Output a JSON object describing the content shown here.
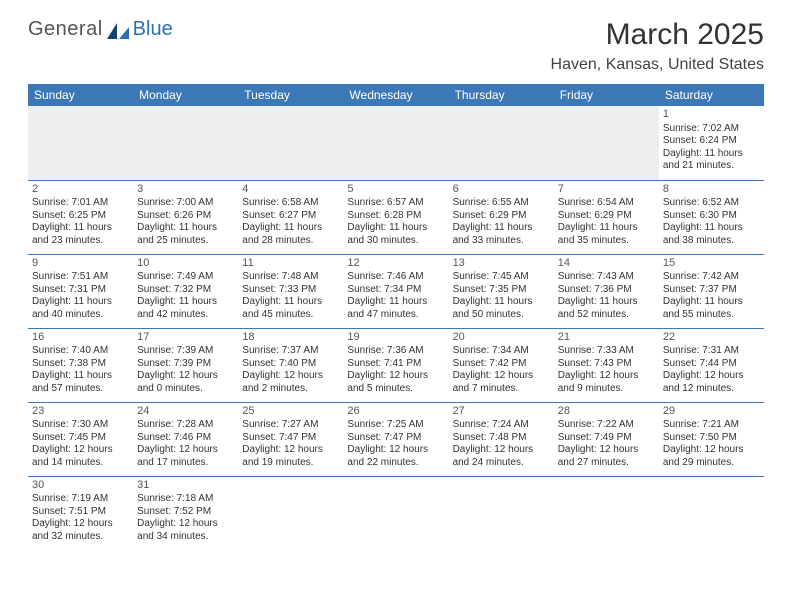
{
  "brand": {
    "part1": "General",
    "part2": "Blue"
  },
  "title": {
    "month": "March 2025",
    "location": "Haven, Kansas, United States"
  },
  "colors": {
    "header_bg": "#3b78b5",
    "header_text": "#ffffff",
    "cell_border": "#3b78b5",
    "blank_bg": "#eeeeee",
    "logo_accent": "#2f6fb2"
  },
  "day_headers": [
    "Sunday",
    "Monday",
    "Tuesday",
    "Wednesday",
    "Thursday",
    "Friday",
    "Saturday"
  ],
  "weeks": [
    [
      null,
      null,
      null,
      null,
      null,
      null,
      {
        "d": "1",
        "sr": "Sunrise: 7:02 AM",
        "ss": "Sunset: 6:24 PM",
        "dl": "Daylight: 11 hours and 21 minutes."
      }
    ],
    [
      {
        "d": "2",
        "sr": "Sunrise: 7:01 AM",
        "ss": "Sunset: 6:25 PM",
        "dl": "Daylight: 11 hours and 23 minutes."
      },
      {
        "d": "3",
        "sr": "Sunrise: 7:00 AM",
        "ss": "Sunset: 6:26 PM",
        "dl": "Daylight: 11 hours and 25 minutes."
      },
      {
        "d": "4",
        "sr": "Sunrise: 6:58 AM",
        "ss": "Sunset: 6:27 PM",
        "dl": "Daylight: 11 hours and 28 minutes."
      },
      {
        "d": "5",
        "sr": "Sunrise: 6:57 AM",
        "ss": "Sunset: 6:28 PM",
        "dl": "Daylight: 11 hours and 30 minutes."
      },
      {
        "d": "6",
        "sr": "Sunrise: 6:55 AM",
        "ss": "Sunset: 6:29 PM",
        "dl": "Daylight: 11 hours and 33 minutes."
      },
      {
        "d": "7",
        "sr": "Sunrise: 6:54 AM",
        "ss": "Sunset: 6:29 PM",
        "dl": "Daylight: 11 hours and 35 minutes."
      },
      {
        "d": "8",
        "sr": "Sunrise: 6:52 AM",
        "ss": "Sunset: 6:30 PM",
        "dl": "Daylight: 11 hours and 38 minutes."
      }
    ],
    [
      {
        "d": "9",
        "sr": "Sunrise: 7:51 AM",
        "ss": "Sunset: 7:31 PM",
        "dl": "Daylight: 11 hours and 40 minutes."
      },
      {
        "d": "10",
        "sr": "Sunrise: 7:49 AM",
        "ss": "Sunset: 7:32 PM",
        "dl": "Daylight: 11 hours and 42 minutes."
      },
      {
        "d": "11",
        "sr": "Sunrise: 7:48 AM",
        "ss": "Sunset: 7:33 PM",
        "dl": "Daylight: 11 hours and 45 minutes."
      },
      {
        "d": "12",
        "sr": "Sunrise: 7:46 AM",
        "ss": "Sunset: 7:34 PM",
        "dl": "Daylight: 11 hours and 47 minutes."
      },
      {
        "d": "13",
        "sr": "Sunrise: 7:45 AM",
        "ss": "Sunset: 7:35 PM",
        "dl": "Daylight: 11 hours and 50 minutes."
      },
      {
        "d": "14",
        "sr": "Sunrise: 7:43 AM",
        "ss": "Sunset: 7:36 PM",
        "dl": "Daylight: 11 hours and 52 minutes."
      },
      {
        "d": "15",
        "sr": "Sunrise: 7:42 AM",
        "ss": "Sunset: 7:37 PM",
        "dl": "Daylight: 11 hours and 55 minutes."
      }
    ],
    [
      {
        "d": "16",
        "sr": "Sunrise: 7:40 AM",
        "ss": "Sunset: 7:38 PM",
        "dl": "Daylight: 11 hours and 57 minutes."
      },
      {
        "d": "17",
        "sr": "Sunrise: 7:39 AM",
        "ss": "Sunset: 7:39 PM",
        "dl": "Daylight: 12 hours and 0 minutes."
      },
      {
        "d": "18",
        "sr": "Sunrise: 7:37 AM",
        "ss": "Sunset: 7:40 PM",
        "dl": "Daylight: 12 hours and 2 minutes."
      },
      {
        "d": "19",
        "sr": "Sunrise: 7:36 AM",
        "ss": "Sunset: 7:41 PM",
        "dl": "Daylight: 12 hours and 5 minutes."
      },
      {
        "d": "20",
        "sr": "Sunrise: 7:34 AM",
        "ss": "Sunset: 7:42 PM",
        "dl": "Daylight: 12 hours and 7 minutes."
      },
      {
        "d": "21",
        "sr": "Sunrise: 7:33 AM",
        "ss": "Sunset: 7:43 PM",
        "dl": "Daylight: 12 hours and 9 minutes."
      },
      {
        "d": "22",
        "sr": "Sunrise: 7:31 AM",
        "ss": "Sunset: 7:44 PM",
        "dl": "Daylight: 12 hours and 12 minutes."
      }
    ],
    [
      {
        "d": "23",
        "sr": "Sunrise: 7:30 AM",
        "ss": "Sunset: 7:45 PM",
        "dl": "Daylight: 12 hours and 14 minutes."
      },
      {
        "d": "24",
        "sr": "Sunrise: 7:28 AM",
        "ss": "Sunset: 7:46 PM",
        "dl": "Daylight: 12 hours and 17 minutes."
      },
      {
        "d": "25",
        "sr": "Sunrise: 7:27 AM",
        "ss": "Sunset: 7:47 PM",
        "dl": "Daylight: 12 hours and 19 minutes."
      },
      {
        "d": "26",
        "sr": "Sunrise: 7:25 AM",
        "ss": "Sunset: 7:47 PM",
        "dl": "Daylight: 12 hours and 22 minutes."
      },
      {
        "d": "27",
        "sr": "Sunrise: 7:24 AM",
        "ss": "Sunset: 7:48 PM",
        "dl": "Daylight: 12 hours and 24 minutes."
      },
      {
        "d": "28",
        "sr": "Sunrise: 7:22 AM",
        "ss": "Sunset: 7:49 PM",
        "dl": "Daylight: 12 hours and 27 minutes."
      },
      {
        "d": "29",
        "sr": "Sunrise: 7:21 AM",
        "ss": "Sunset: 7:50 PM",
        "dl": "Daylight: 12 hours and 29 minutes."
      }
    ],
    [
      {
        "d": "30",
        "sr": "Sunrise: 7:19 AM",
        "ss": "Sunset: 7:51 PM",
        "dl": "Daylight: 12 hours and 32 minutes."
      },
      {
        "d": "31",
        "sr": "Sunrise: 7:18 AM",
        "ss": "Sunset: 7:52 PM",
        "dl": "Daylight: 12 hours and 34 minutes."
      },
      null,
      null,
      null,
      null,
      null
    ]
  ]
}
